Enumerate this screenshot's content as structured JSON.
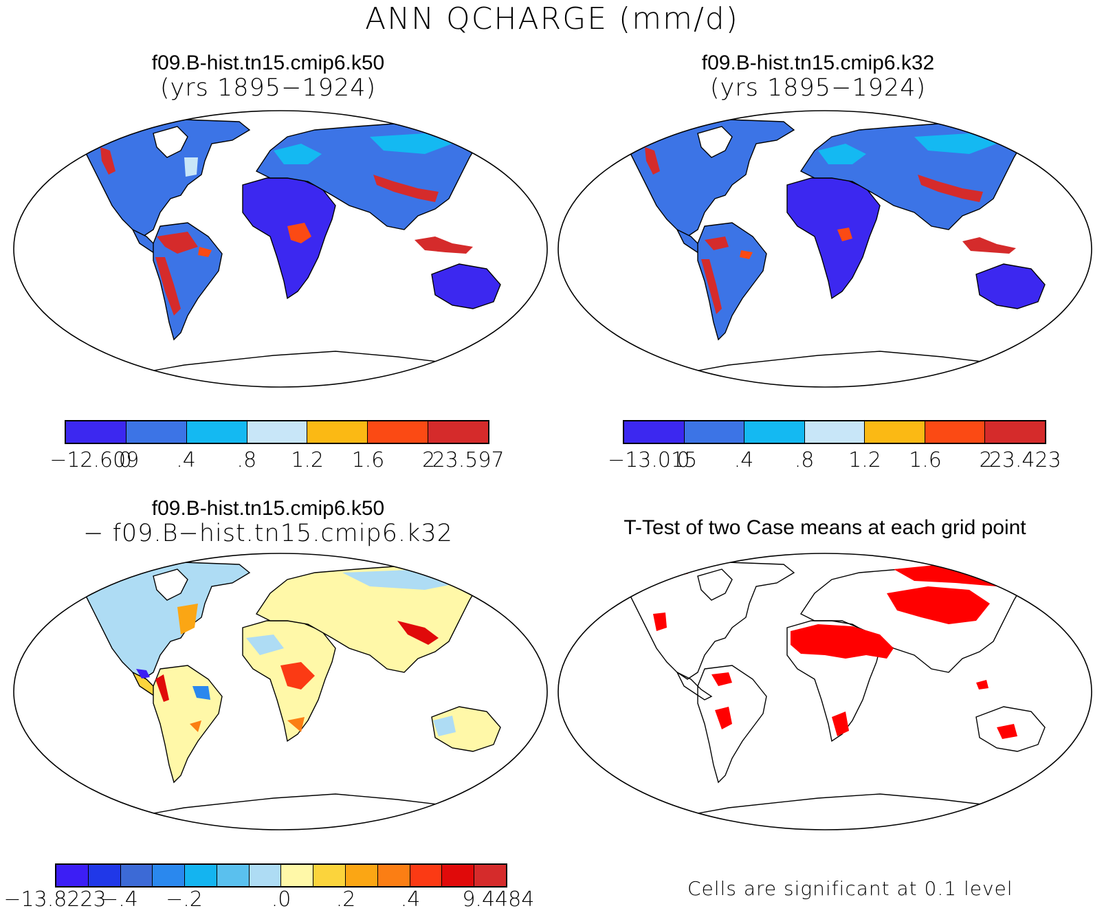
{
  "figure": {
    "title": "ANN QCHARGE (mm/d)"
  },
  "panels": [
    {
      "id": "case1",
      "title_line1": "f09.B-hist.tn15.cmip6.k50",
      "title_line2": "(yrs 1895−1924)",
      "colorbar": {
        "colors": [
          "#3c28f0",
          "#3c74e6",
          "#14b9f2",
          "#c8e6f8",
          "#fbb914",
          "#fb4a14",
          "#d52b2b"
        ],
        "labels": [
          "−12.609",
          "0",
          ".4",
          ".8",
          "1.2",
          "1.6",
          "2",
          "23.597"
        ]
      }
    },
    {
      "id": "case2",
      "title_line1": "f09.B-hist.tn15.cmip6.k32",
      "title_line2": "(yrs 1895−1924)",
      "colorbar": {
        "colors": [
          "#3c28f0",
          "#3c74e6",
          "#14b9f2",
          "#c8e6f8",
          "#fbb914",
          "#fb4a14",
          "#d52b2b"
        ],
        "labels": [
          "−13.015",
          "0",
          ".4",
          ".8",
          "1.2",
          "1.6",
          "2",
          "23.423"
        ]
      }
    },
    {
      "id": "difference",
      "title_line1": "f09.B-hist.tn15.cmip6.k50",
      "title_line2": "− f09.B−hist.tn15.cmip6.k32",
      "colorbar": {
        "colors": [
          "#3c1ef5",
          "#2038e8",
          "#3c6ad6",
          "#2a88ee",
          "#14b4f0",
          "#5ac0ee",
          "#aedcf4",
          "#fff8a8",
          "#fbd43c",
          "#fba614",
          "#fb7e14",
          "#fb3a14",
          "#e00a0a",
          "#d52b2b"
        ],
        "labels": [
          "−13.8223",
          "−.4",
          "−.2",
          ".0",
          ".2",
          ".4",
          "9.4484"
        ]
      }
    },
    {
      "id": "ttest",
      "title_line1": "T-Test of two Case means at each grid point",
      "note": "Cells are significant at 0.1 level"
    }
  ],
  "map_fills": {
    "case": {
      "ocean": "#ffffff",
      "land_base": "#3c74e6",
      "dry": "#3c28f0",
      "mid": "#14b9f2",
      "wet": "#d52b2b",
      "moist": "#fb4a14",
      "light": "#c8e6f8",
      "ice": "#ffffff"
    },
    "diff": {
      "land_base": "#fff8a8",
      "cool": "#aedcf4",
      "warm": "#fbd43c",
      "hot": "#e00a0a",
      "neg": "#2a88ee"
    },
    "ttest": {
      "significant": "#ff0000"
    }
  }
}
